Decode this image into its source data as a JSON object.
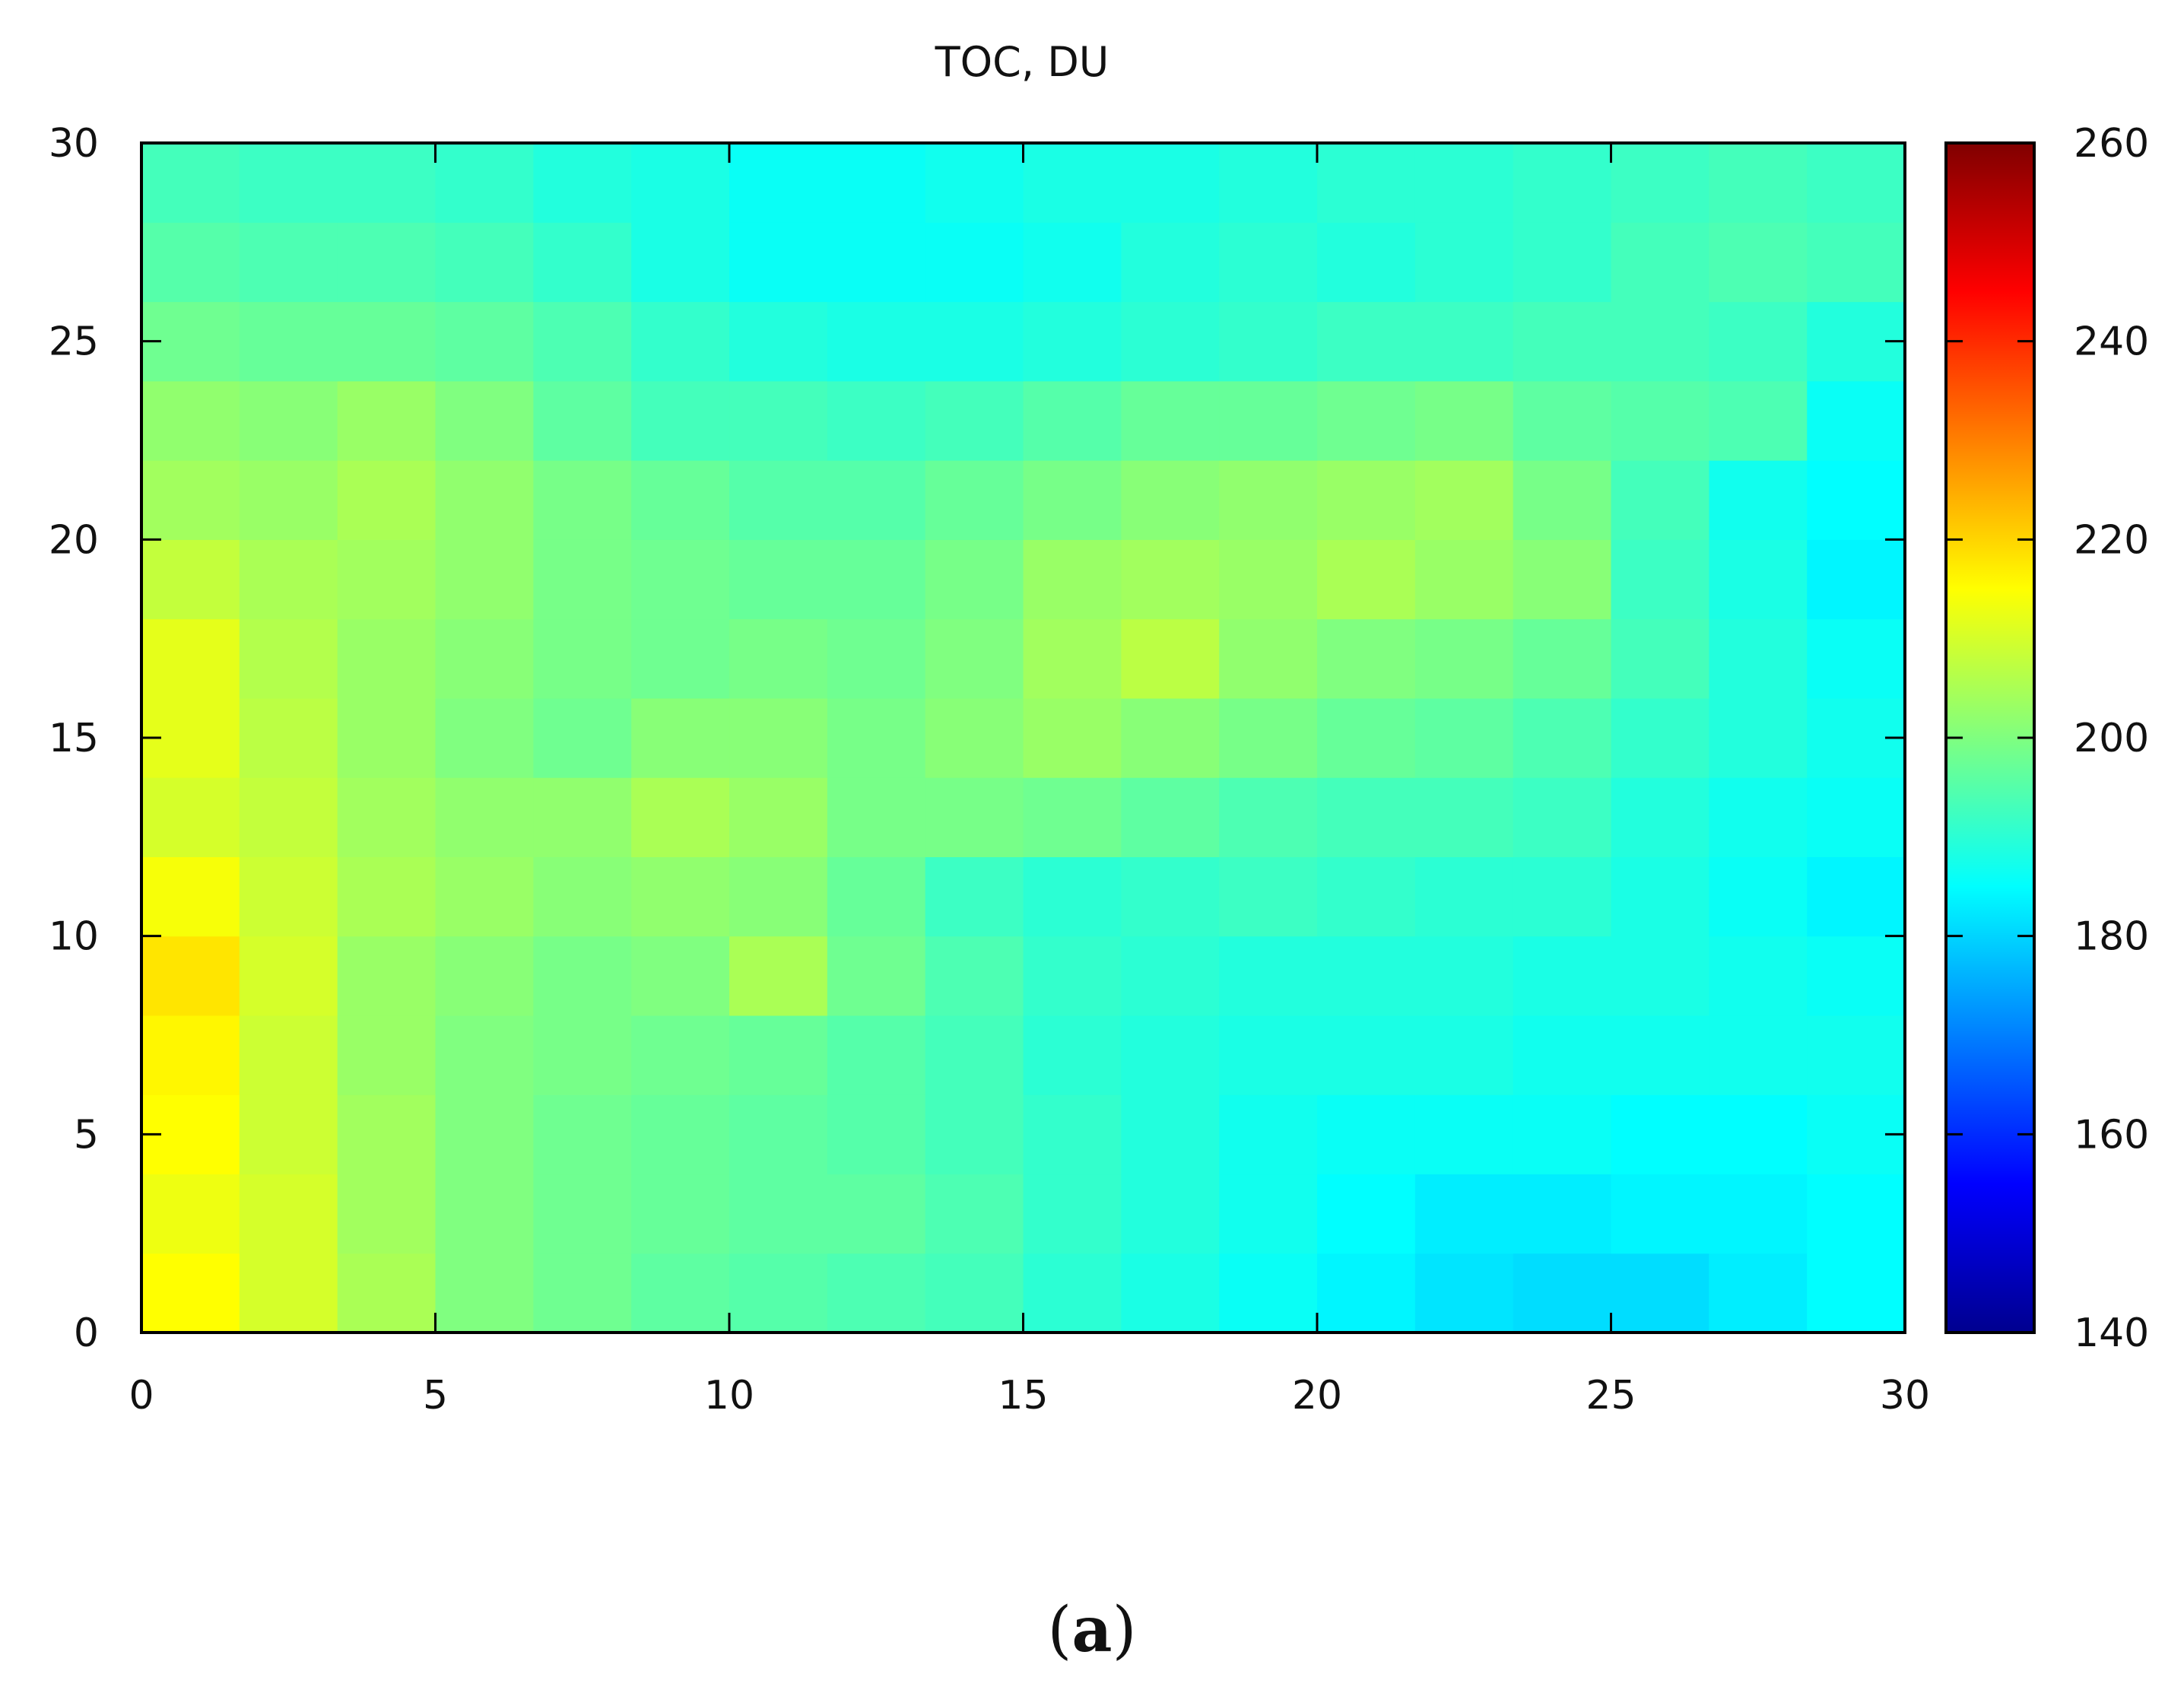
{
  "figure": {
    "panel_prefix": "(",
    "panel_letter": "a",
    "panel_suffix": ")"
  },
  "chart_data": {
    "type": "heatmap",
    "title": "TOC, DU",
    "xlabel": "",
    "ylabel": "",
    "xlim": [
      0,
      30
    ],
    "ylim": [
      0,
      30
    ],
    "x_ticks": [
      0,
      5,
      10,
      15,
      20,
      25,
      30
    ],
    "y_ticks": [
      0,
      5,
      10,
      15,
      20,
      25,
      30
    ],
    "x_tick_labels": [
      "0",
      "5",
      "10",
      "15",
      "20",
      "25",
      "30"
    ],
    "y_tick_labels": [
      "0",
      "5",
      "10",
      "15",
      "20",
      "25",
      "30"
    ],
    "grid": false,
    "colorbar": {
      "range": [
        140,
        260
      ],
      "ticks": [
        140,
        160,
        180,
        200,
        220,
        240,
        260
      ],
      "tick_labels": [
        "140",
        "160",
        "180",
        "200",
        "220",
        "240",
        "260"
      ],
      "colormap": "jet",
      "colors": [
        "#00008f",
        "#0000ff",
        "#00ffff",
        "#ffff00",
        "#ff0000",
        "#800000"
      ]
    },
    "resolution": {
      "nx": 18,
      "ny": 15,
      "dx": 1.6667,
      "dy": 2.0
    },
    "x_centers": [
      0.8,
      2.5,
      4.2,
      5.8,
      7.5,
      9.2,
      10.8,
      12.5,
      14.2,
      15.8,
      17.5,
      19.2,
      20.8,
      22.5,
      24.2,
      25.8,
      27.5,
      29.2
    ],
    "y_centers": [
      1,
      3,
      5,
      7,
      9,
      11,
      13,
      15,
      17,
      19,
      21,
      23,
      25,
      27,
      29
    ],
    "values": [
      [
        215,
        210,
        205,
        200,
        198,
        196,
        195,
        194,
        193,
        190,
        188,
        186,
        184,
        182,
        181,
        181,
        183,
        185
      ],
      [
        213,
        210,
        204,
        200,
        198,
        197,
        196,
        196,
        194,
        191,
        189,
        187,
        185,
        183,
        183,
        184,
        184,
        185
      ],
      [
        215,
        209,
        204,
        200,
        198,
        197,
        196,
        195,
        193,
        191,
        189,
        187,
        186,
        186,
        186,
        185,
        185,
        186
      ],
      [
        216,
        209,
        203,
        200,
        199,
        198,
        197,
        195,
        193,
        190,
        189,
        188,
        188,
        188,
        187,
        187,
        187,
        187
      ],
      [
        218,
        210,
        203,
        201,
        199,
        200,
        205,
        198,
        194,
        191,
        190,
        189,
        189,
        189,
        188,
        188,
        187,
        186
      ],
      [
        214,
        209,
        205,
        203,
        201,
        202,
        201,
        197,
        192,
        190,
        191,
        192,
        191,
        190,
        190,
        188,
        186,
        184
      ],
      [
        210,
        208,
        204,
        202,
        202,
        205,
        203,
        199,
        199,
        198,
        196,
        194,
        193,
        193,
        192,
        189,
        187,
        186
      ],
      [
        212,
        207,
        203,
        200,
        198,
        201,
        201,
        199,
        201,
        203,
        201,
        199,
        197,
        196,
        194,
        191,
        189,
        187
      ],
      [
        212,
        206,
        203,
        201,
        199,
        198,
        199,
        198,
        200,
        204,
        207,
        202,
        200,
        199,
        197,
        193,
        189,
        186
      ],
      [
        208,
        205,
        204,
        202,
        199,
        198,
        197,
        197,
        199,
        203,
        204,
        203,
        205,
        203,
        201,
        192,
        188,
        184
      ],
      [
        204,
        203,
        205,
        202,
        199,
        197,
        195,
        195,
        197,
        199,
        201,
        202,
        203,
        204,
        199,
        193,
        187,
        185
      ],
      [
        202,
        201,
        203,
        200,
        196,
        193,
        193,
        192,
        193,
        195,
        197,
        197,
        198,
        199,
        196,
        195,
        194,
        186
      ],
      [
        198,
        197,
        197,
        196,
        194,
        191,
        189,
        188,
        188,
        189,
        190,
        191,
        192,
        192,
        193,
        193,
        192,
        189
      ],
      [
        195,
        194,
        194,
        193,
        191,
        188,
        186,
        186,
        186,
        187,
        189,
        190,
        189,
        190,
        191,
        193,
        194,
        193
      ],
      [
        193,
        192,
        192,
        191,
        189,
        188,
        186,
        186,
        187,
        188,
        188,
        189,
        190,
        190,
        191,
        192,
        193,
        192
      ]
    ]
  }
}
